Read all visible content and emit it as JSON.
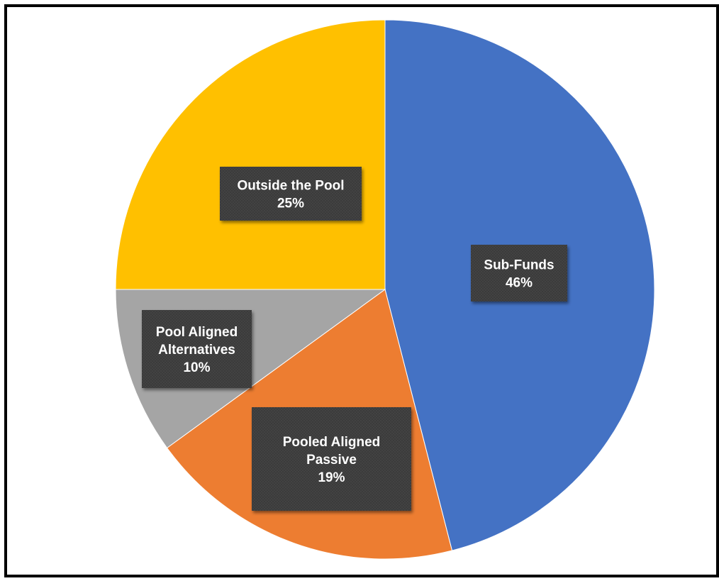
{
  "chart_data": {
    "type": "pie",
    "title": "",
    "slices": [
      {
        "label": "Sub-Funds",
        "value": 46,
        "display": "46%",
        "color": "#4472C4"
      },
      {
        "label": "Pooled Aligned Passive",
        "value": 19,
        "display": "19%",
        "color": "#ED7D31"
      },
      {
        "label": "Pool Aligned Alternatives",
        "value": 10,
        "display": "10%",
        "color": "#A5A5A5"
      },
      {
        "label": "Outside the Pool",
        "value": 25,
        "display": "25%",
        "color": "#FFC000"
      }
    ],
    "label_lines": [
      [
        "Sub-Funds",
        "46%"
      ],
      [
        "Pooled Aligned",
        "Passive",
        "19%"
      ],
      [
        "Pool Aligned",
        "Alternatives",
        "10%"
      ],
      [
        "Outside the Pool",
        "25%"
      ]
    ],
    "legend": "none",
    "label_style": "dark boxes with white bold text"
  }
}
